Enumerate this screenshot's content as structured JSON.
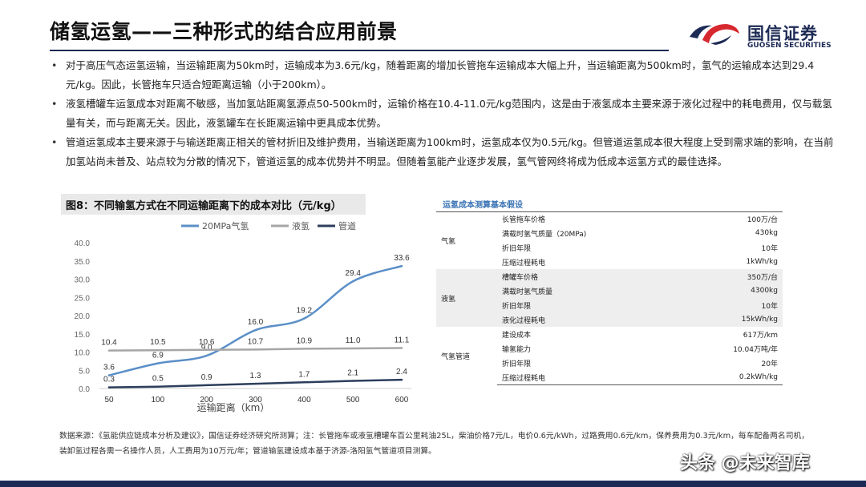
{
  "page": {
    "title": "储氢运氢——三种形式的结合应用前景",
    "logo": {
      "cn": "国信证券",
      "en": "GUOSEN SECURITIES",
      "colors": {
        "red": "#d7282f",
        "navy": "#1d2a55"
      }
    },
    "bullets": [
      "对于高压气态运氢运输，当运输距离为50km时，运输成本为3.6元/kg，随着距离的增加长管拖车运输成本大幅上升，当运输距离为500km时，氢气的运输成本达到29.4元/kg。因此，长管拖车只适合短距离运输（小于200km）。",
      "液氢槽罐车运氢成本对距离不敏感，当加氢站距离氢源点50-500km时，运输价格在10.4-11.0元/kg范围内，这是由于液氢成本主要来源于液化过程中的耗电费用，仅与载氢量有关，而与距离无关。因此，液氢罐车在长距离运输中更具成本优势。",
      "管道运氢成本主要来源于与输送距离正相关的管材折旧及维护费用，当输送距离为100km时，运氢成本仅为0.5元/kg。但管道运氢成本很大程度上受到需求端的影响，在当前加氢站尚未普及、站点较为分散的情况下，管道运氢的成本优势并不明显。但随着氢能产业逐步发展，氢气管网终将成为低成本运氢方式的最佳选择。"
    ],
    "figure_label": "图8：不同输氢方式在不同运输距离下的成本对比（元/kg）",
    "table": {
      "title": "运氢成本测算基本假设",
      "groups": [
        {
          "name": "气氢",
          "rows": [
            {
              "param": "长管拖车价格",
              "value": "100万/台"
            },
            {
              "param": "满载时氢气质量（20MPa)",
              "value": "430kg"
            },
            {
              "param": "折旧年限",
              "value": "10年"
            },
            {
              "param": "压缩过程耗电",
              "value": "1kWh/kg"
            }
          ]
        },
        {
          "name": "液氢",
          "rows": [
            {
              "param": "槽罐车价格",
              "value": "350万/台"
            },
            {
              "param": "满载时氢气质量",
              "value": "4300kg"
            },
            {
              "param": "折旧年限",
              "value": "10年"
            },
            {
              "param": "液化过程耗电",
              "value": "15kWh/kg"
            }
          ]
        },
        {
          "name": "气氢管道",
          "rows": [
            {
              "param": "建设成本",
              "value": "617万/km"
            },
            {
              "param": "输氢能力",
              "value": "10.04万吨/年"
            },
            {
              "param": "折旧年限",
              "value": "20年"
            },
            {
              "param": "压缩过程耗电",
              "value": "0.2kWh/kg"
            }
          ]
        }
      ]
    },
    "footnote": "数据来源：《氢能供应链成本分析及建议》，国信证券经济研究所测算；注：长管拖车或液氢槽罐车百公里耗油25L，柴油价格7元/L，电价0.6元/kWh，过路费用0.6元/km，保养费用为0.3元/km，每车配备两名司机，装卸氢过程各需一名操作人员，人工费用为10万元/年；管道输氢建设成本基于济源-洛阳氢气管道项目测算。",
    "watermark": "头条 @未来智库"
  },
  "chart_data": {
    "type": "line",
    "title": "",
    "xlabel": "运输距离（km）",
    "ylabel": "",
    "categories": [
      "50",
      "100",
      "200",
      "300",
      "400",
      "500",
      "600"
    ],
    "ylim": [
      0,
      40
    ],
    "yticks": [
      "0.0",
      "5.0",
      "10.0",
      "15.0",
      "20.0",
      "25.0",
      "30.0",
      "35.0",
      "40.0"
    ],
    "legend_position": "top",
    "grid": false,
    "series": [
      {
        "name": "20MPa气氢",
        "color": "#5b8fc7",
        "smooth": true,
        "values": [
          3.6,
          6.9,
          9.0,
          16.0,
          19.2,
          29.4,
          33.6
        ],
        "labels": [
          "3.6",
          "6.9",
          "9.0",
          "16.0",
          "19.2",
          "29.4",
          "33.6"
        ]
      },
      {
        "name": "液氢",
        "color": "#a6a6a6",
        "smooth": false,
        "values": [
          10.4,
          10.5,
          10.6,
          10.7,
          10.9,
          11.0,
          11.1
        ],
        "labels": [
          "10.4",
          "10.5",
          "10.6",
          "10.7",
          "10.9",
          "11.0",
          "11.1"
        ]
      },
      {
        "name": "管道",
        "color": "#2c3e5c",
        "smooth": false,
        "values": [
          0.3,
          0.5,
          0.9,
          1.3,
          1.7,
          2.1,
          2.4
        ],
        "labels": [
          "0.3",
          "0.5",
          "0.9",
          "1.3",
          "1.7",
          "2.1",
          "2.4"
        ]
      }
    ]
  }
}
